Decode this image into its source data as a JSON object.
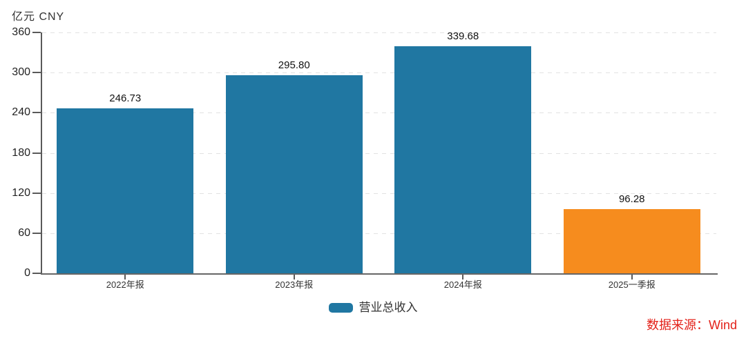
{
  "header": {
    "unit_label": "亿元 CNY"
  },
  "chart_data": {
    "type": "bar",
    "title": "",
    "ylabel": "亿元 CNY",
    "xlabel": "",
    "categories": [
      "2022年报",
      "2023年报",
      "2024年报",
      "2025一季报"
    ],
    "series": [
      {
        "name": "营业总收入",
        "values": [
          246.73,
          295.8,
          339.68,
          96.28
        ],
        "value_labels": [
          "246.73",
          "295.80",
          "339.68",
          "96.28"
        ]
      }
    ],
    "bar_colors": [
      "#2077A2",
      "#2077A2",
      "#2077A2",
      "#F68C1E"
    ],
    "ylim": [
      0,
      360
    ],
    "yticks": [
      0,
      60,
      120,
      180,
      240,
      300,
      360
    ],
    "grid": "horizontal-dashed",
    "legend_position": "bottom-center"
  },
  "legend": {
    "label": "营业总收入",
    "swatch_color": "#2077A2"
  },
  "footer": {
    "source_label": "数据来源：Wind"
  },
  "colors": {
    "bar_teal": "#2077A2",
    "bar_orange": "#F68C1E",
    "gridline": "#E2E2E2",
    "axis": "#595959",
    "source_red": "#E32119",
    "tick_text": "#222222"
  }
}
